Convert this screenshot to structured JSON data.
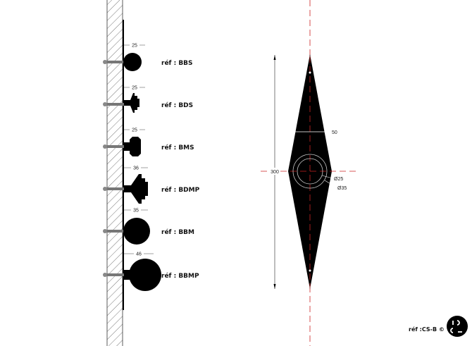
{
  "knobs": [
    {
      "ref": "réf : BBS",
      "dimension": "25",
      "shape": "ball-small"
    },
    {
      "ref": "réf : BDS",
      "dimension": "25",
      "shape": "stepped-small"
    },
    {
      "ref": "réf : BMS",
      "dimension": "25",
      "shape": "octagon-small"
    },
    {
      "ref": "réf : BDMP",
      "dimension": "36",
      "shape": "stepped-large"
    },
    {
      "ref": "réf : BBM",
      "dimension": "35",
      "shape": "ball-medium"
    },
    {
      "ref": "réf : BBMP",
      "dimension": "46",
      "shape": "ball-large"
    }
  ],
  "plate": {
    "height_label": "300",
    "width_label": "50",
    "inner_diameter_label": "Ø25",
    "outer_diameter_label": "Ø35"
  },
  "footer": {
    "ref": "réf :CS-B ©",
    "logo_text": "CSC"
  },
  "colors": {
    "ink": "#000000",
    "centerline": "#cc2222",
    "hatch": "#555555"
  }
}
